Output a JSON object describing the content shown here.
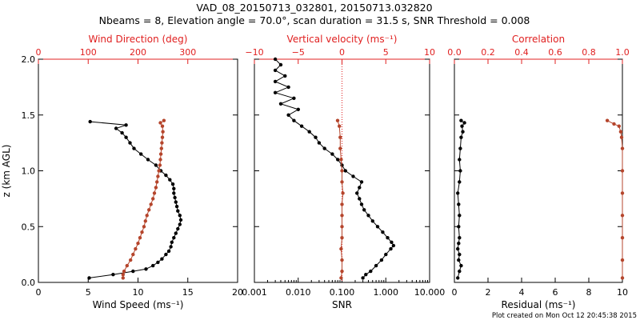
{
  "title_line1": "VAD_08_20150713_032801, 20150713.032820",
  "title_line2": "Nbeams = 8, Elevation angle = 70.0°, scan duration = 31.5 s, SNR Threshold = 0.008",
  "footer": "Plot created on Mon Oct 12 20:45:38 2015",
  "colors": {
    "primary": "#000000",
    "secondary": "#b5452c",
    "top_axis": "#e02020"
  },
  "chart_data": [
    {
      "type": "line",
      "ylabel": "z (km AGL)",
      "ylim": [
        0,
        2.0
      ],
      "yticks": [
        "0.0",
        "0.5",
        "1.0",
        "1.5",
        "2.0"
      ],
      "xlabel": "Wind Speed (ms⁻¹)",
      "xlim": [
        0,
        20
      ],
      "xticks": [
        "0",
        "5",
        "10",
        "15",
        "20"
      ],
      "top_xlabel": "Wind Direction (deg)",
      "top_xlim": [
        0,
        400
      ],
      "top_xticks": [
        "0",
        "100",
        "200",
        "300"
      ],
      "series": [
        {
          "color": "#000000",
          "axis": "bottom",
          "z": [
            0.04,
            0.07,
            0.1,
            0.12,
            0.15,
            0.18,
            0.21,
            0.25,
            0.28,
            0.32,
            0.36,
            0.4,
            0.44,
            0.48,
            0.52,
            0.56,
            0.6,
            0.64,
            0.68,
            0.72,
            0.76,
            0.8,
            0.84,
            0.88,
            0.92,
            0.96,
            1.0,
            1.05,
            1.1,
            1.15,
            1.2,
            1.25,
            1.3,
            1.34,
            1.38,
            1.41,
            1.44
          ],
          "values": [
            5.1,
            7.5,
            9.5,
            10.8,
            11.5,
            12.0,
            12.4,
            12.8,
            13.1,
            13.3,
            13.4,
            13.6,
            13.8,
            14.0,
            14.2,
            14.3,
            14.2,
            14.0,
            13.9,
            13.8,
            13.7,
            13.6,
            13.6,
            13.5,
            13.2,
            12.8,
            12.3,
            11.8,
            11.0,
            10.3,
            9.6,
            9.2,
            8.8,
            8.4,
            7.8,
            8.8,
            5.2
          ]
        },
        {
          "color": "#b5452c",
          "axis": "top",
          "z": [
            0.04,
            0.07,
            0.1,
            0.15,
            0.2,
            0.25,
            0.3,
            0.35,
            0.4,
            0.45,
            0.5,
            0.55,
            0.6,
            0.65,
            0.7,
            0.75,
            0.8,
            0.85,
            0.9,
            0.95,
            1.0,
            1.05,
            1.1,
            1.15,
            1.2,
            1.25,
            1.3,
            1.35,
            1.4,
            1.43,
            1.45
          ],
          "values": [
            170,
            170,
            172,
            178,
            185,
            190,
            195,
            200,
            204,
            208,
            212,
            215,
            218,
            222,
            226,
            230,
            233,
            236,
            238,
            240,
            242,
            244,
            245,
            246,
            247,
            248,
            249,
            250,
            249,
            245,
            252
          ]
        }
      ]
    },
    {
      "type": "line",
      "xlabel": "SNR",
      "xscale": "log",
      "xlim": [
        0.001,
        10
      ],
      "xticks": [
        "0.001",
        "0.010",
        "0.100",
        "1.000",
        "10.000"
      ],
      "top_xlabel": "Vertical velocity (ms⁻¹)",
      "top_xlim": [
        -10,
        10
      ],
      "top_xticks": [
        "−10",
        "−5",
        "0",
        "5",
        "10"
      ],
      "ylim": [
        0,
        2.0
      ],
      "series": [
        {
          "color": "#000000",
          "axis": "bottom",
          "z": [
            0.04,
            0.07,
            0.1,
            0.15,
            0.2,
            0.25,
            0.3,
            0.33,
            0.36,
            0.4,
            0.45,
            0.5,
            0.55,
            0.6,
            0.65,
            0.7,
            0.75,
            0.8,
            0.85,
            0.9,
            0.95,
            1.0,
            1.05,
            1.1,
            1.15,
            1.2,
            1.25,
            1.3,
            1.35,
            1.4,
            1.45,
            1.5,
            1.55,
            1.6,
            1.65,
            1.7,
            1.75,
            1.8,
            1.85,
            1.9,
            1.95,
            2.0
          ],
          "values": [
            0.3,
            0.35,
            0.45,
            0.6,
            0.8,
            1.0,
            1.3,
            1.5,
            1.35,
            1.1,
            0.85,
            0.65,
            0.5,
            0.4,
            0.32,
            0.28,
            0.25,
            0.22,
            0.25,
            0.28,
            0.18,
            0.12,
            0.1,
            0.08,
            0.06,
            0.04,
            0.03,
            0.025,
            0.018,
            0.012,
            0.008,
            0.006,
            0.01,
            0.004,
            0.008,
            0.003,
            0.006,
            0.003,
            0.005,
            0.003,
            0.004,
            0.003
          ]
        },
        {
          "color": "#b5452c",
          "axis": "top",
          "z": [
            0.04,
            0.1,
            0.2,
            0.3,
            0.4,
            0.5,
            0.6,
            0.7,
            0.8,
            0.9,
            1.0,
            1.1,
            1.2,
            1.3,
            1.4,
            1.45
          ],
          "values": [
            -0.1,
            0.0,
            0.0,
            -0.1,
            0.0,
            0.0,
            0.0,
            0.0,
            0.1,
            0.0,
            0.0,
            -0.1,
            -0.2,
            -0.2,
            -0.3,
            -0.5
          ]
        }
      ]
    },
    {
      "type": "line",
      "xlabel": "Residual (ms⁻¹)",
      "xlim": [
        0,
        10
      ],
      "xticks": [
        "0",
        "2",
        "4",
        "6",
        "8",
        "10"
      ],
      "top_xlabel": "Correlation",
      "top_xlim": [
        0.0,
        1.0
      ],
      "top_xticks": [
        "0.0",
        "0.2",
        "0.4",
        "0.6",
        "0.8",
        "1.0"
      ],
      "ylim": [
        0,
        2.0
      ],
      "series": [
        {
          "color": "#000000",
          "axis": "bottom",
          "z": [
            0.04,
            0.1,
            0.15,
            0.2,
            0.25,
            0.3,
            0.35,
            0.4,
            0.5,
            0.6,
            0.7,
            0.8,
            0.9,
            1.0,
            1.1,
            1.2,
            1.3,
            1.35,
            1.4,
            1.43,
            1.45
          ],
          "values": [
            0.2,
            0.3,
            0.4,
            0.25,
            0.3,
            0.2,
            0.25,
            0.3,
            0.25,
            0.3,
            0.25,
            0.2,
            0.3,
            0.35,
            0.3,
            0.35,
            0.4,
            0.5,
            0.45,
            0.6,
            0.4
          ]
        },
        {
          "color": "#b5452c",
          "axis": "top",
          "z": [
            0.04,
            0.2,
            0.4,
            0.6,
            0.8,
            1.0,
            1.2,
            1.3,
            1.35,
            1.4,
            1.42,
            1.45
          ],
          "values": [
            1.0,
            1.0,
            1.0,
            1.0,
            1.0,
            1.0,
            1.0,
            0.995,
            0.99,
            0.98,
            0.95,
            0.91
          ]
        }
      ]
    }
  ]
}
